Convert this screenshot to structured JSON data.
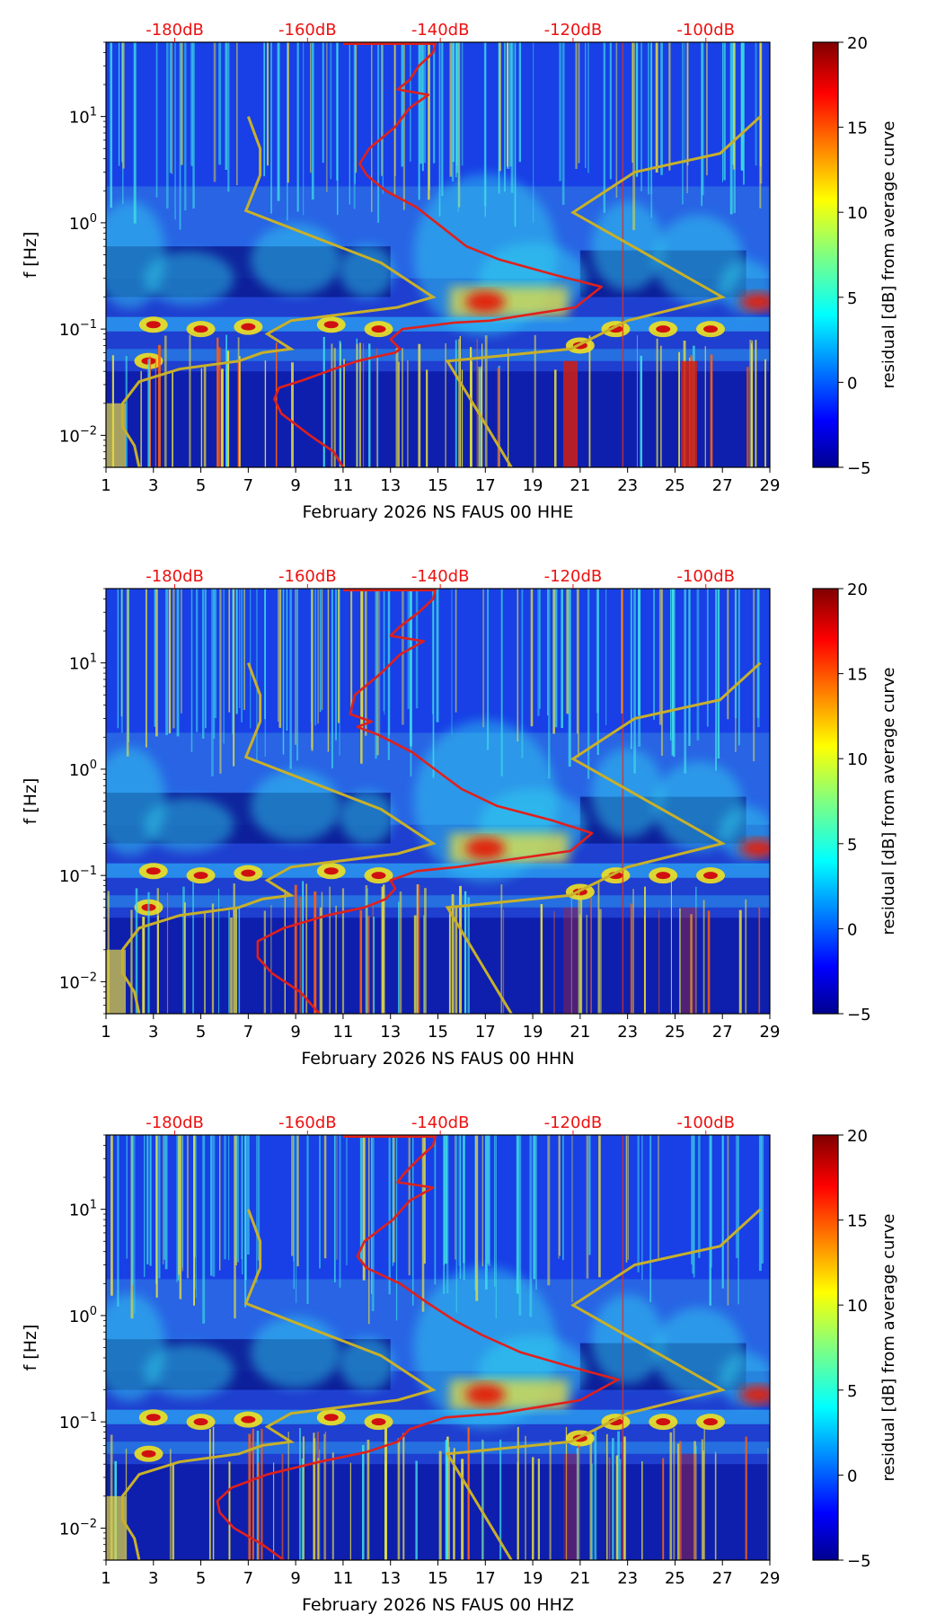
{
  "colors": {
    "red_curve": "#e0201b",
    "yellow_curve": "#c8b02a",
    "db_label": "#ee1111",
    "colormap": "jet"
  },
  "chart_data": [
    {
      "type": "heatmap",
      "title": "",
      "xlabel": "February 2026 NS FAUS 00 HHE",
      "ylabel": "f [Hz]",
      "xlim": [
        1,
        29
      ],
      "ylim_log": [
        0.005,
        50
      ],
      "x_ticks": [
        "1",
        "3",
        "5",
        "7",
        "9",
        "11",
        "13",
        "15",
        "17",
        "19",
        "21",
        "23",
        "25",
        "27",
        "29"
      ],
      "y_ticks": [
        {
          "value": 0.01,
          "base": "10",
          "exp": "−2"
        },
        {
          "value": 0.1,
          "base": "10",
          "exp": "−1"
        },
        {
          "value": 1,
          "base": "10",
          "exp": "0"
        },
        {
          "value": 10,
          "base": "10",
          "exp": "1"
        }
      ],
      "top_ticks": [
        {
          "x": 3.9,
          "label": "-180dB"
        },
        {
          "x": 9.5,
          "label": "-160dB"
        },
        {
          "x": 15.1,
          "label": "-140dB"
        },
        {
          "x": 20.7,
          "label": "-120dB"
        },
        {
          "x": 26.3,
          "label": "-100dB"
        }
      ],
      "colorbar": {
        "label": "residual [dB] from average curve",
        "min": -5,
        "max": 20,
        "ticks": [
          "20",
          "15",
          "10",
          "5",
          "0",
          "−5"
        ]
      },
      "red_curve": [
        [
          11.0,
          0.005
        ],
        [
          10.6,
          0.007
        ],
        [
          9.6,
          0.01
        ],
        [
          8.4,
          0.016
        ],
        [
          8.1,
          0.022
        ],
        [
          8.3,
          0.028
        ],
        [
          9.3,
          0.033
        ],
        [
          10.6,
          0.042
        ],
        [
          11.6,
          0.05
        ],
        [
          12.4,
          0.055
        ],
        [
          13.2,
          0.06
        ],
        [
          13.4,
          0.065
        ],
        [
          13.0,
          0.08
        ],
        [
          13.5,
          0.1
        ],
        [
          15.7,
          0.115
        ],
        [
          17.2,
          0.12
        ],
        [
          20.8,
          0.16
        ],
        [
          21.9,
          0.25
        ],
        [
          20.0,
          0.32
        ],
        [
          17.6,
          0.45
        ],
        [
          16.2,
          0.6
        ],
        [
          15.2,
          0.9
        ],
        [
          14.1,
          1.4
        ],
        [
          12.8,
          2.0
        ],
        [
          12.0,
          2.8
        ],
        [
          11.7,
          3.6
        ],
        [
          12.1,
          5.0
        ],
        [
          13.2,
          8.0
        ],
        [
          13.8,
          12
        ],
        [
          14.6,
          16
        ],
        [
          13.3,
          18
        ],
        [
          13.8,
          22
        ],
        [
          14.2,
          30
        ],
        [
          14.8,
          40
        ],
        [
          14.9,
          50
        ]
      ],
      "yellow_left": [
        [
          2.4,
          0.005
        ],
        [
          2.2,
          0.008
        ],
        [
          1.7,
          0.012
        ],
        [
          1.7,
          0.02
        ],
        [
          2.4,
          0.032
        ],
        [
          4.1,
          0.042
        ],
        [
          6.6,
          0.05
        ],
        [
          7.6,
          0.06
        ],
        [
          8.8,
          0.065
        ],
        [
          7.8,
          0.09
        ],
        [
          8.8,
          0.12
        ],
        [
          13.3,
          0.16
        ],
        [
          14.8,
          0.2
        ],
        [
          12.6,
          0.42
        ],
        [
          6.9,
          1.3
        ],
        [
          7.5,
          2.8
        ],
        [
          7.5,
          5
        ],
        [
          7.0,
          10
        ]
      ],
      "yellow_right": [
        [
          18.1,
          0.005
        ],
        [
          15.4,
          0.05
        ],
        [
          20.6,
          0.065
        ],
        [
          23.0,
          0.12
        ],
        [
          27.0,
          0.2
        ],
        [
          20.7,
          1.25
        ],
        [
          23.3,
          3
        ],
        [
          26.9,
          4.5
        ],
        [
          28.6,
          10
        ]
      ]
    },
    {
      "type": "heatmap",
      "title": "",
      "xlabel": "February 2026 NS FAUS 00 HHN",
      "ylabel": "f [Hz]",
      "xlim": [
        1,
        29
      ],
      "ylim_log": [
        0.005,
        50
      ],
      "x_ticks": [
        "1",
        "3",
        "5",
        "7",
        "9",
        "11",
        "13",
        "15",
        "17",
        "19",
        "21",
        "23",
        "25",
        "27",
        "29"
      ],
      "y_ticks": [
        {
          "value": 0.01,
          "base": "10",
          "exp": "−2"
        },
        {
          "value": 0.1,
          "base": "10",
          "exp": "−1"
        },
        {
          "value": 1,
          "base": "10",
          "exp": "0"
        },
        {
          "value": 10,
          "base": "10",
          "exp": "1"
        }
      ],
      "top_ticks": [
        {
          "x": 3.9,
          "label": "-180dB"
        },
        {
          "x": 9.5,
          "label": "-160dB"
        },
        {
          "x": 15.1,
          "label": "-140dB"
        },
        {
          "x": 20.7,
          "label": "-120dB"
        },
        {
          "x": 26.3,
          "label": "-100dB"
        }
      ],
      "colorbar": {
        "label": "residual [dB] from average curve",
        "min": -5,
        "max": 20,
        "ticks": [
          "20",
          "15",
          "10",
          "5",
          "0",
          "−5"
        ]
      },
      "red_curve": [
        [
          10.0,
          0.005
        ],
        [
          9.2,
          0.008
        ],
        [
          8.0,
          0.012
        ],
        [
          7.4,
          0.017
        ],
        [
          7.4,
          0.024
        ],
        [
          8.5,
          0.032
        ],
        [
          10.3,
          0.042
        ],
        [
          11.9,
          0.05
        ],
        [
          12.8,
          0.06
        ],
        [
          13.2,
          0.075
        ],
        [
          13.0,
          0.09
        ],
        [
          14.1,
          0.11
        ],
        [
          15.8,
          0.12
        ],
        [
          20.6,
          0.17
        ],
        [
          21.5,
          0.25
        ],
        [
          19.8,
          0.33
        ],
        [
          17.5,
          0.45
        ],
        [
          16.0,
          0.65
        ],
        [
          15.0,
          0.95
        ],
        [
          13.9,
          1.45
        ],
        [
          12.5,
          2.1
        ],
        [
          11.6,
          2.5
        ],
        [
          12.2,
          2.8
        ],
        [
          11.3,
          3.3
        ],
        [
          11.5,
          5.0
        ],
        [
          12.6,
          8.0
        ],
        [
          13.4,
          12
        ],
        [
          14.4,
          16
        ],
        [
          13.0,
          18
        ],
        [
          13.4,
          22
        ],
        [
          14.2,
          30
        ],
        [
          14.8,
          40
        ],
        [
          14.9,
          50
        ]
      ],
      "yellow_left": [
        [
          2.4,
          0.005
        ],
        [
          2.2,
          0.008
        ],
        [
          1.7,
          0.012
        ],
        [
          1.7,
          0.02
        ],
        [
          2.4,
          0.032
        ],
        [
          4.1,
          0.042
        ],
        [
          6.6,
          0.05
        ],
        [
          7.6,
          0.06
        ],
        [
          8.8,
          0.065
        ],
        [
          7.8,
          0.09
        ],
        [
          8.8,
          0.12
        ],
        [
          13.3,
          0.16
        ],
        [
          14.8,
          0.2
        ],
        [
          12.6,
          0.42
        ],
        [
          6.9,
          1.3
        ],
        [
          7.5,
          2.8
        ],
        [
          7.5,
          5
        ],
        [
          7.0,
          10
        ]
      ],
      "yellow_right": [
        [
          18.1,
          0.005
        ],
        [
          15.4,
          0.05
        ],
        [
          20.6,
          0.065
        ],
        [
          23.0,
          0.12
        ],
        [
          27.0,
          0.2
        ],
        [
          20.7,
          1.25
        ],
        [
          23.3,
          3
        ],
        [
          26.9,
          4.5
        ],
        [
          28.6,
          10
        ]
      ]
    },
    {
      "type": "heatmap",
      "title": "",
      "xlabel": "February 2026 NS FAUS 00 HHZ",
      "ylabel": "f [Hz]",
      "xlim": [
        1,
        29
      ],
      "ylim_log": [
        0.005,
        50
      ],
      "x_ticks": [
        "1",
        "3",
        "5",
        "7",
        "9",
        "11",
        "13",
        "15",
        "17",
        "19",
        "21",
        "23",
        "25",
        "27",
        "29"
      ],
      "y_ticks": [
        {
          "value": 0.01,
          "base": "10",
          "exp": "−2"
        },
        {
          "value": 0.1,
          "base": "10",
          "exp": "−1"
        },
        {
          "value": 1,
          "base": "10",
          "exp": "0"
        },
        {
          "value": 10,
          "base": "10",
          "exp": "1"
        }
      ],
      "top_ticks": [
        {
          "x": 3.9,
          "label": "-180dB"
        },
        {
          "x": 9.5,
          "label": "-160dB"
        },
        {
          "x": 15.1,
          "label": "-140dB"
        },
        {
          "x": 20.7,
          "label": "-120dB"
        },
        {
          "x": 26.3,
          "label": "-100dB"
        }
      ],
      "colorbar": {
        "label": "residual [dB] from average curve",
        "min": -5,
        "max": 20,
        "ticks": [
          "20",
          "15",
          "10",
          "5",
          "0",
          "−5"
        ]
      },
      "red_curve": [
        [
          8.5,
          0.005
        ],
        [
          7.6,
          0.007
        ],
        [
          6.4,
          0.01
        ],
        [
          5.8,
          0.014
        ],
        [
          5.7,
          0.018
        ],
        [
          6.3,
          0.024
        ],
        [
          7.8,
          0.032
        ],
        [
          10.0,
          0.042
        ],
        [
          12.0,
          0.052
        ],
        [
          13.3,
          0.065
        ],
        [
          13.8,
          0.085
        ],
        [
          15.3,
          0.11
        ],
        [
          17.6,
          0.12
        ],
        [
          21.0,
          0.16
        ],
        [
          22.6,
          0.25
        ],
        [
          20.8,
          0.32
        ],
        [
          18.5,
          0.45
        ],
        [
          16.9,
          0.65
        ],
        [
          15.7,
          0.9
        ],
        [
          14.6,
          1.3
        ],
        [
          13.4,
          2.0
        ],
        [
          12.0,
          2.8
        ],
        [
          11.6,
          3.6
        ],
        [
          11.9,
          5.0
        ],
        [
          13.1,
          8.0
        ],
        [
          13.8,
          12
        ],
        [
          14.8,
          16
        ],
        [
          13.3,
          18
        ],
        [
          13.6,
          22
        ],
        [
          14.2,
          30
        ],
        [
          14.8,
          40
        ],
        [
          14.9,
          50
        ]
      ],
      "yellow_left": [
        [
          2.4,
          0.005
        ],
        [
          2.2,
          0.008
        ],
        [
          1.7,
          0.012
        ],
        [
          1.7,
          0.02
        ],
        [
          2.4,
          0.032
        ],
        [
          4.1,
          0.042
        ],
        [
          6.6,
          0.05
        ],
        [
          7.6,
          0.06
        ],
        [
          8.8,
          0.065
        ],
        [
          7.8,
          0.09
        ],
        [
          8.8,
          0.12
        ],
        [
          13.3,
          0.16
        ],
        [
          14.8,
          0.2
        ],
        [
          12.6,
          0.42
        ],
        [
          6.9,
          1.3
        ],
        [
          7.5,
          2.8
        ],
        [
          7.5,
          5
        ],
        [
          7.0,
          10
        ]
      ],
      "yellow_right": [
        [
          18.1,
          0.005
        ],
        [
          15.4,
          0.05
        ],
        [
          20.6,
          0.065
        ],
        [
          23.0,
          0.12
        ],
        [
          27.0,
          0.2
        ],
        [
          20.7,
          1.25
        ],
        [
          23.3,
          3
        ],
        [
          26.9,
          4.5
        ],
        [
          28.6,
          10
        ]
      ]
    }
  ]
}
